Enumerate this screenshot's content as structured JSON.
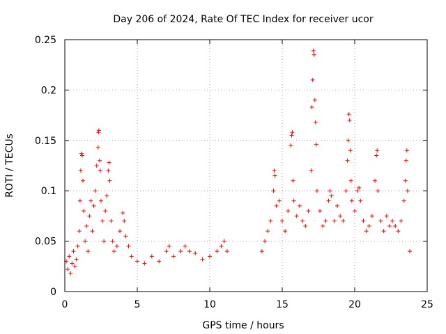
{
  "chart_data": {
    "type": "scatter",
    "title": "Day 206 of 2024, Rate Of TEC Index for receiver ucor",
    "xlabel": "GPS time / hours",
    "ylabel": "ROTI / TECUs",
    "xlim": [
      0,
      25
    ],
    "ylim": [
      0,
      0.25
    ],
    "xticks": [
      0,
      5,
      10,
      15,
      20,
      25
    ],
    "yticks": [
      0,
      0.05,
      0.1,
      0.15,
      0.2,
      0.25
    ],
    "xtick_labels": [
      "0",
      "5",
      "10",
      "15",
      "20",
      "25"
    ],
    "ytick_labels": [
      "0",
      "0.05",
      "0.1",
      "0.15",
      "0.2",
      "0.25"
    ],
    "grid": true,
    "marker": "+",
    "color": "#ff0000",
    "series": [
      {
        "values": [
          [
            0.1,
            0.03
          ],
          [
            0.2,
            0.022
          ],
          [
            0.3,
            0.035
          ],
          [
            0.4,
            0.018
          ],
          [
            0.5,
            0.028
          ],
          [
            0.6,
            0.04
          ],
          [
            0.7,
            0.025
          ],
          [
            0.8,
            0.032
          ],
          [
            0.9,
            0.045
          ],
          [
            1.0,
            0.06
          ],
          [
            1.05,
            0.09
          ],
          [
            1.1,
            0.12
          ],
          [
            1.15,
            0.137
          ],
          [
            1.2,
            0.135
          ],
          [
            1.25,
            0.11
          ],
          [
            1.3,
            0.08
          ],
          [
            1.4,
            0.05
          ],
          [
            1.5,
            0.065
          ],
          [
            1.6,
            0.04
          ],
          [
            1.7,
            0.075
          ],
          [
            1.8,
            0.09
          ],
          [
            1.9,
            0.06
          ],
          [
            2.0,
            0.085
          ],
          [
            2.1,
            0.1
          ],
          [
            2.2,
            0.125
          ],
          [
            2.3,
            0.143
          ],
          [
            2.32,
            0.158
          ],
          [
            2.35,
            0.16
          ],
          [
            2.4,
            0.13
          ],
          [
            2.45,
            0.12
          ],
          [
            2.5,
            0.09
          ],
          [
            2.6,
            0.07
          ],
          [
            2.7,
            0.05
          ],
          [
            2.8,
            0.08
          ],
          [
            2.9,
            0.095
          ],
          [
            3.0,
            0.12
          ],
          [
            3.05,
            0.128
          ],
          [
            3.1,
            0.11
          ],
          [
            3.2,
            0.07
          ],
          [
            3.3,
            0.05
          ],
          [
            3.4,
            0.04
          ],
          [
            3.6,
            0.045
          ],
          [
            3.8,
            0.06
          ],
          [
            4.0,
            0.078
          ],
          [
            4.1,
            0.07
          ],
          [
            4.2,
            0.055
          ],
          [
            4.4,
            0.045
          ],
          [
            4.6,
            0.035
          ],
          [
            5.0,
            0.03
          ],
          [
            5.5,
            0.028
          ],
          [
            6.0,
            0.035
          ],
          [
            6.5,
            0.03
          ],
          [
            7.0,
            0.04
          ],
          [
            7.2,
            0.045
          ],
          [
            7.5,
            0.035
          ],
          [
            8.0,
            0.04
          ],
          [
            8.3,
            0.045
          ],
          [
            8.6,
            0.04
          ],
          [
            9.0,
            0.038
          ],
          [
            9.5,
            0.032
          ],
          [
            10.0,
            0.035
          ],
          [
            10.5,
            0.04
          ],
          [
            10.8,
            0.045
          ],
          [
            11.0,
            0.05
          ],
          [
            11.2,
            0.04
          ],
          [
            13.6,
            0.04
          ],
          [
            13.8,
            0.05
          ],
          [
            14.0,
            0.06
          ],
          [
            14.2,
            0.07
          ],
          [
            14.4,
            0.1
          ],
          [
            14.45,
            0.12
          ],
          [
            14.5,
            0.115
          ],
          [
            14.6,
            0.085
          ],
          [
            14.8,
            0.09
          ],
          [
            15.0,
            0.07
          ],
          [
            15.2,
            0.06
          ],
          [
            15.4,
            0.08
          ],
          [
            15.6,
            0.145
          ],
          [
            15.65,
            0.155
          ],
          [
            15.7,
            0.158
          ],
          [
            15.75,
            0.11
          ],
          [
            15.8,
            0.09
          ],
          [
            16.0,
            0.075
          ],
          [
            16.2,
            0.085
          ],
          [
            16.4,
            0.07
          ],
          [
            16.6,
            0.065
          ],
          [
            16.8,
            0.08
          ],
          [
            17.0,
            0.12
          ],
          [
            17.05,
            0.183
          ],
          [
            17.1,
            0.21
          ],
          [
            17.15,
            0.239
          ],
          [
            17.2,
            0.235
          ],
          [
            17.25,
            0.19
          ],
          [
            17.3,
            0.168
          ],
          [
            17.35,
            0.146
          ],
          [
            17.4,
            0.1
          ],
          [
            17.6,
            0.08
          ],
          [
            17.8,
            0.065
          ],
          [
            18.0,
            0.07
          ],
          [
            18.2,
            0.09
          ],
          [
            18.3,
            0.1
          ],
          [
            18.4,
            0.095
          ],
          [
            18.6,
            0.07
          ],
          [
            18.8,
            0.085
          ],
          [
            19.0,
            0.075
          ],
          [
            19.2,
            0.07
          ],
          [
            19.4,
            0.1
          ],
          [
            19.5,
            0.13
          ],
          [
            19.55,
            0.15
          ],
          [
            19.6,
            0.176
          ],
          [
            19.65,
            0.17
          ],
          [
            19.7,
            0.14
          ],
          [
            19.75,
            0.11
          ],
          [
            19.8,
            0.09
          ],
          [
            20.0,
            0.08
          ],
          [
            20.2,
            0.1
          ],
          [
            20.3,
            0.103
          ],
          [
            20.4,
            0.09
          ],
          [
            20.6,
            0.07
          ],
          [
            20.8,
            0.06
          ],
          [
            21.0,
            0.065
          ],
          [
            21.2,
            0.075
          ],
          [
            21.4,
            0.11
          ],
          [
            21.5,
            0.135
          ],
          [
            21.55,
            0.14
          ],
          [
            21.6,
            0.1
          ],
          [
            21.8,
            0.07
          ],
          [
            22.0,
            0.06
          ],
          [
            22.2,
            0.075
          ],
          [
            22.4,
            0.065
          ],
          [
            22.6,
            0.07
          ],
          [
            22.8,
            0.065
          ],
          [
            23.0,
            0.06
          ],
          [
            23.2,
            0.07
          ],
          [
            23.4,
            0.09
          ],
          [
            23.5,
            0.11
          ],
          [
            23.55,
            0.13
          ],
          [
            23.6,
            0.14
          ],
          [
            23.65,
            0.1
          ],
          [
            23.8,
            0.04
          ]
        ]
      }
    ]
  }
}
